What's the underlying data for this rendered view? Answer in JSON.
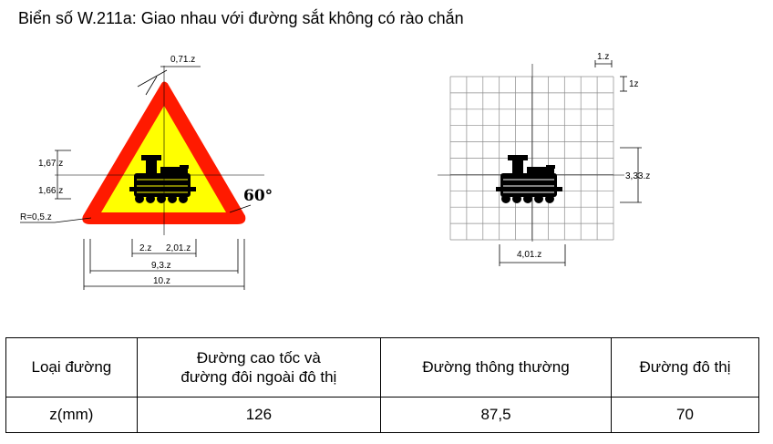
{
  "title": "Biển số W.211a: Giao nhau với đường sắt không có rào chắn",
  "dimensions": {
    "top_thickness": "0,71.z",
    "upper_half": "1,67.z",
    "lower_half": "1,66.z",
    "corner_radius": "R=0,5.z",
    "angle": "60°",
    "left_part": "2.z",
    "right_part": "2,01.z",
    "inner_width": "9,3.z",
    "outer_width": "10.z",
    "grid_cell_w": "1.z",
    "grid_cell_h": "1z",
    "symbol_height": "3,33.z",
    "symbol_width": "4,01.z"
  },
  "table": {
    "header": [
      "Loại đường",
      "Đường cao tốc và",
      "đường đôi ngoài đô thị",
      "Đường thông thường",
      "Đường đô thị"
    ],
    "row": [
      "z(mm)",
      "126",
      "87,5",
      "70"
    ]
  },
  "colors": {
    "triangle_border": "#ff1a00",
    "triangle_fill": "#ffff00",
    "symbol": "#000000",
    "grid": "#8c8c8c"
  }
}
